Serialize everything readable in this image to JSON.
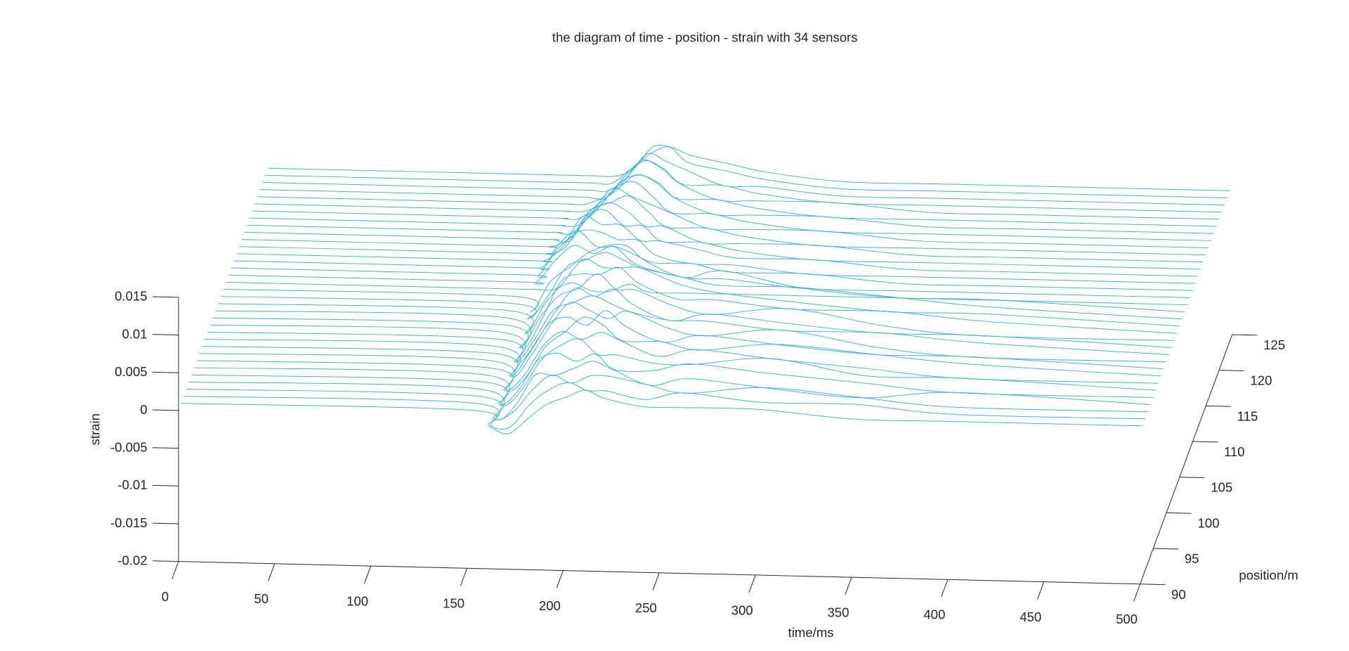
{
  "chart_data": {
    "type": "waterfall",
    "title": "the diagram of time - position - strain with 34 sensors",
    "xlabel": "time/ms",
    "ylabel": "position/m",
    "zlabel": "strain",
    "color": "#3db3d6",
    "xlim": [
      0,
      500
    ],
    "ylim": [
      90,
      125
    ],
    "zlim": [
      -0.02,
      0.015
    ],
    "xticks": [
      0,
      50,
      100,
      150,
      200,
      250,
      300,
      350,
      400,
      450,
      500
    ],
    "yticks": [
      90,
      95,
      100,
      105,
      110,
      115,
      120,
      125
    ],
    "zticks": [
      -0.02,
      -0.015,
      -0.01,
      -0.005,
      0,
      0.005,
      0.01,
      0.015
    ],
    "x": [
      0,
      150,
      160,
      170,
      180,
      190,
      200,
      210,
      220,
      240,
      260,
      300,
      350,
      400,
      500
    ],
    "series": [
      {
        "position": 91,
        "values": [
          0,
          0,
          -0.002,
          -0.003,
          -0.001,
          0.001,
          0.002,
          0.003,
          0.002,
          0.001,
          0.001,
          0.001,
          0,
          0,
          0
        ]
      },
      {
        "position": 92,
        "values": [
          0,
          0,
          -0.003,
          -0.003,
          0,
          0.002,
          0.003,
          0.002,
          0.002,
          0.001,
          0.002,
          0.001,
          0.001,
          0,
          0
        ]
      },
      {
        "position": 93,
        "values": [
          0,
          0,
          -0.003,
          -0.002,
          0.001,
          0.003,
          0.002,
          0.003,
          0.003,
          0.002,
          0.001,
          0.002,
          0.001,
          0,
          0
        ]
      },
      {
        "position": 94,
        "values": [
          0,
          0,
          -0.004,
          -0.002,
          0.002,
          0.002,
          0.003,
          0.004,
          0.003,
          0.001,
          0.002,
          0.001,
          0,
          0.001,
          0
        ]
      },
      {
        "position": 95,
        "values": [
          0,
          0,
          -0.003,
          -0.001,
          0.003,
          0.004,
          0.003,
          0.004,
          0.002,
          0.002,
          0.003,
          0.002,
          0.001,
          0,
          0
        ]
      },
      {
        "position": 96,
        "values": [
          0,
          0,
          -0.004,
          -0.002,
          0.002,
          0.004,
          0.005,
          0.003,
          0.003,
          0.002,
          0.002,
          0.003,
          0.001,
          0.001,
          0
        ]
      },
      {
        "position": 97,
        "values": [
          0,
          0,
          -0.003,
          -0.001,
          0.003,
          0.005,
          0.004,
          0.005,
          0.004,
          0.002,
          0.003,
          0.002,
          0.001,
          0,
          0
        ]
      },
      {
        "position": 98,
        "values": [
          0,
          0,
          -0.004,
          -0.002,
          0.002,
          0.004,
          0.006,
          0.005,
          0.003,
          0.003,
          0.002,
          0.003,
          0.002,
          0.001,
          0
        ]
      },
      {
        "position": 99,
        "values": [
          0,
          0,
          -0.003,
          0,
          0.004,
          0.005,
          0.004,
          0.006,
          0.004,
          0.002,
          0.003,
          0.002,
          0.001,
          0.001,
          0
        ]
      },
      {
        "position": 100,
        "values": [
          0,
          0,
          -0.004,
          -0.001,
          0.003,
          0.006,
          0.005,
          0.004,
          0.005,
          0.003,
          0.002,
          0.003,
          0.001,
          0,
          0
        ]
      },
      {
        "position": 101,
        "values": [
          0,
          0,
          -0.003,
          0,
          0.004,
          0.005,
          0.006,
          0.005,
          0.004,
          0.003,
          0.003,
          0.002,
          0.002,
          0.001,
          0
        ]
      },
      {
        "position": 102,
        "values": [
          0,
          0,
          -0.004,
          -0.001,
          0.003,
          0.006,
          0.005,
          0.006,
          0.004,
          0.002,
          0.003,
          0.002,
          0.001,
          0.001,
          0
        ]
      },
      {
        "position": 103,
        "values": [
          0,
          0,
          -0.003,
          0.001,
          0.004,
          0.005,
          0.007,
          0.005,
          0.005,
          0.003,
          0.002,
          0.003,
          0.001,
          0,
          0
        ]
      },
      {
        "position": 104,
        "values": [
          0,
          0,
          -0.004,
          0,
          0.005,
          0.006,
          0.006,
          0.007,
          0.005,
          0.003,
          0.003,
          0.002,
          0.002,
          0.001,
          0
        ]
      },
      {
        "position": 105,
        "values": [
          0,
          0,
          -0.003,
          0.001,
          0.004,
          0.007,
          0.006,
          0.006,
          0.006,
          0.004,
          0.003,
          0.002,
          0.001,
          0.001,
          0
        ]
      },
      {
        "position": 106,
        "values": [
          0,
          0,
          -0.002,
          0.001,
          0.005,
          0.006,
          0.007,
          0.006,
          0.005,
          0.004,
          0.003,
          0.003,
          0.002,
          0.001,
          0
        ]
      },
      {
        "position": 107,
        "values": [
          0,
          0,
          -0.002,
          0.002,
          0.004,
          0.006,
          0.007,
          0.007,
          0.005,
          0.003,
          0.004,
          0.002,
          0.001,
          0.001,
          0
        ]
      },
      {
        "position": 108,
        "values": [
          0,
          0,
          0,
          0,
          0.001,
          0,
          0,
          0.001,
          0,
          0,
          0,
          0,
          0,
          0,
          0
        ]
      },
      {
        "position": 109,
        "values": [
          0,
          0,
          0,
          0.003,
          0.005,
          0.004,
          0.005,
          0.003,
          0.002,
          0.001,
          0.001,
          0,
          0,
          0,
          0
        ]
      },
      {
        "position": 110,
        "values": [
          0,
          0,
          0,
          0.004,
          0.006,
          0.004,
          0.004,
          0.003,
          0.002,
          0.002,
          0.001,
          0.001,
          0,
          0,
          0
        ]
      },
      {
        "position": 111,
        "values": [
          0,
          0,
          0,
          0.003,
          0.005,
          0.005,
          0.004,
          0.004,
          0.002,
          0.001,
          0.001,
          0,
          0,
          0,
          0
        ]
      },
      {
        "position": 112,
        "values": [
          0,
          0,
          0,
          0.002,
          0.006,
          0.005,
          0.005,
          0.003,
          0.003,
          0.002,
          0.001,
          0.001,
          0,
          0,
          0
        ]
      },
      {
        "position": 113,
        "values": [
          0,
          0,
          0,
          0.001,
          0.005,
          0.006,
          0.004,
          0.004,
          0.002,
          0.002,
          0.001,
          0,
          0,
          0,
          0
        ]
      },
      {
        "position": 114,
        "values": [
          0,
          0,
          0,
          0.001,
          0.004,
          0.006,
          0.005,
          0.003,
          0.003,
          0.001,
          0.001,
          0.001,
          0,
          0,
          0
        ]
      },
      {
        "position": 115,
        "values": [
          0,
          0,
          0,
          0,
          0.004,
          0.005,
          0.006,
          0.004,
          0.002,
          0.002,
          0.001,
          0,
          0,
          0,
          0
        ]
      },
      {
        "position": 116,
        "values": [
          0,
          0,
          0,
          0,
          0.003,
          0.006,
          0.005,
          0.004,
          0.003,
          0.001,
          0.001,
          0.001,
          0,
          0,
          0
        ]
      },
      {
        "position": 117,
        "values": [
          0,
          0,
          0,
          0,
          0.002,
          0.005,
          0.006,
          0.004,
          0.002,
          0.002,
          0.001,
          0,
          0,
          0,
          0
        ]
      },
      {
        "position": 118,
        "values": [
          0,
          0,
          0,
          0,
          0.002,
          0.004,
          0.006,
          0.005,
          0.003,
          0.001,
          0.001,
          0.001,
          0,
          0,
          0
        ]
      },
      {
        "position": 119,
        "values": [
          0,
          0,
          0,
          0,
          0.001,
          0.004,
          0.005,
          0.004,
          0.002,
          0.002,
          0.001,
          0,
          0,
          0,
          0
        ]
      },
      {
        "position": 120,
        "values": [
          0,
          0,
          0,
          0,
          0.001,
          0.003,
          0.006,
          0.005,
          0.003,
          0.001,
          0.001,
          0.001,
          0,
          0,
          0
        ]
      },
      {
        "position": 121,
        "values": [
          0,
          0,
          0,
          0,
          0,
          0.003,
          0.005,
          0.004,
          0.002,
          0.002,
          0.001,
          0,
          0,
          0,
          0
        ]
      },
      {
        "position": 122,
        "values": [
          0,
          0,
          0,
          0,
          0,
          0.002,
          0.005,
          0.004,
          0.003,
          0.001,
          0.001,
          0,
          0,
          0,
          0
        ]
      },
      {
        "position": 123,
        "values": [
          0,
          0,
          0,
          0,
          0,
          0.002,
          0.004,
          0.005,
          0.003,
          0.002,
          0.001,
          0,
          0,
          0,
          0
        ]
      },
      {
        "position": 124,
        "values": [
          0,
          0,
          0,
          0,
          0,
          0.001,
          0.004,
          0.004,
          0.003,
          0.002,
          0.001,
          0,
          0,
          0,
          0
        ]
      }
    ]
  }
}
